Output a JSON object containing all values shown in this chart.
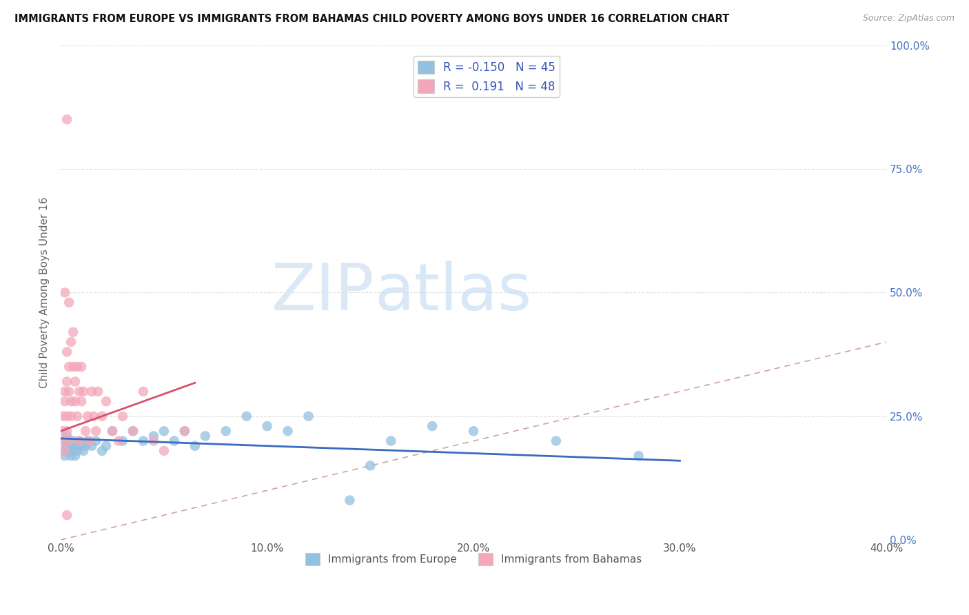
{
  "title": "IMMIGRANTS FROM EUROPE VS IMMIGRANTS FROM BAHAMAS CHILD POVERTY AMONG BOYS UNDER 16 CORRELATION CHART",
  "source": "Source: ZipAtlas.com",
  "ylabel": "Child Poverty Among Boys Under 16",
  "xlim": [
    0.0,
    0.4
  ],
  "ylim": [
    0.0,
    1.0
  ],
  "xtick_values": [
    0.0,
    0.1,
    0.2,
    0.3,
    0.4
  ],
  "ytick_values": [
    0.0,
    0.25,
    0.5,
    0.75,
    1.0
  ],
  "europe_R": -0.15,
  "europe_N": 45,
  "bahamas_R": 0.191,
  "bahamas_N": 48,
  "europe_color": "#92c0e0",
  "bahamas_color": "#f4a7b9",
  "europe_line_color": "#3a6bbf",
  "bahamas_line_color": "#d94f6e",
  "diagonal_color": "#d0a0a8",
  "europe_x": [
    0.001,
    0.002,
    0.002,
    0.003,
    0.003,
    0.004,
    0.004,
    0.005,
    0.005,
    0.006,
    0.006,
    0.007,
    0.007,
    0.008,
    0.009,
    0.01,
    0.011,
    0.012,
    0.013,
    0.015,
    0.017,
    0.02,
    0.022,
    0.025,
    0.03,
    0.035,
    0.04,
    0.045,
    0.05,
    0.055,
    0.06,
    0.065,
    0.07,
    0.08,
    0.09,
    0.1,
    0.11,
    0.12,
    0.14,
    0.15,
    0.16,
    0.18,
    0.2,
    0.24,
    0.28
  ],
  "europe_y": [
    0.18,
    0.17,
    0.2,
    0.19,
    0.21,
    0.18,
    0.2,
    0.17,
    0.19,
    0.2,
    0.18,
    0.19,
    0.17,
    0.18,
    0.2,
    0.19,
    0.18,
    0.19,
    0.2,
    0.19,
    0.2,
    0.18,
    0.19,
    0.22,
    0.2,
    0.22,
    0.2,
    0.21,
    0.22,
    0.2,
    0.22,
    0.19,
    0.21,
    0.22,
    0.25,
    0.23,
    0.22,
    0.25,
    0.08,
    0.15,
    0.2,
    0.23,
    0.22,
    0.2,
    0.17
  ],
  "bahamas_x": [
    0.001,
    0.001,
    0.001,
    0.002,
    0.002,
    0.002,
    0.003,
    0.003,
    0.003,
    0.003,
    0.004,
    0.004,
    0.004,
    0.005,
    0.005,
    0.005,
    0.006,
    0.006,
    0.007,
    0.007,
    0.008,
    0.008,
    0.009,
    0.009,
    0.01,
    0.01,
    0.011,
    0.012,
    0.013,
    0.014,
    0.015,
    0.016,
    0.017,
    0.018,
    0.02,
    0.022,
    0.025,
    0.028,
    0.03,
    0.035,
    0.04,
    0.045,
    0.05,
    0.06,
    0.003,
    0.002,
    0.004,
    0.003
  ],
  "bahamas_y": [
    0.2,
    0.22,
    0.25,
    0.18,
    0.28,
    0.3,
    0.22,
    0.32,
    0.25,
    0.38,
    0.2,
    0.3,
    0.35,
    0.25,
    0.28,
    0.4,
    0.35,
    0.42,
    0.28,
    0.32,
    0.25,
    0.35,
    0.2,
    0.3,
    0.28,
    0.35,
    0.3,
    0.22,
    0.25,
    0.2,
    0.3,
    0.25,
    0.22,
    0.3,
    0.25,
    0.28,
    0.22,
    0.2,
    0.25,
    0.22,
    0.3,
    0.2,
    0.18,
    0.22,
    0.85,
    0.5,
    0.48,
    0.05
  ]
}
